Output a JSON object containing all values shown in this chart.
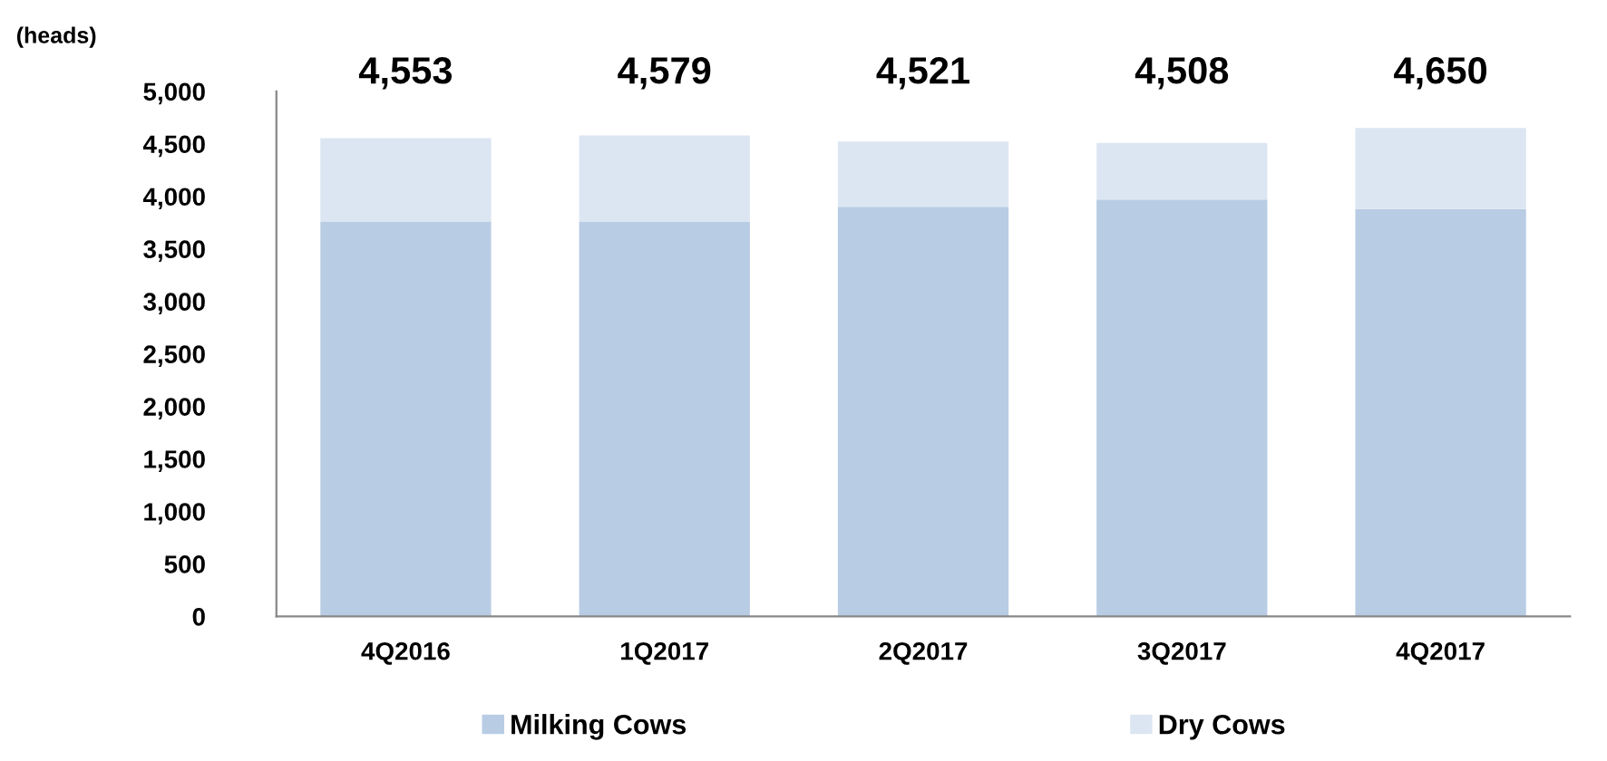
{
  "chart_data": {
    "type": "bar",
    "stacked": true,
    "ylabel": "(heads)",
    "categories": [
      "4Q2016",
      "1Q2017",
      "2Q2017",
      "3Q2017",
      "4Q2017"
    ],
    "series": [
      {
        "name": "Milking Cows",
        "color": "#b8cce4",
        "values": [
          3760,
          3760,
          3900,
          3970,
          3880
        ]
      },
      {
        "name": "Dry Cows",
        "color": "#dce6f2",
        "values": [
          793,
          819,
          621,
          538,
          770
        ]
      }
    ],
    "totals": [
      "4,553",
      "4,579",
      "4,521",
      "4,508",
      "4,650"
    ],
    "ylim": [
      0,
      5000
    ],
    "yticks": [
      {
        "value": 0,
        "label": "0"
      },
      {
        "value": 500,
        "label": "500"
      },
      {
        "value": 1000,
        "label": "1,000"
      },
      {
        "value": 1500,
        "label": "1,500"
      },
      {
        "value": 2000,
        "label": "2,000"
      },
      {
        "value": 2500,
        "label": "2,500"
      },
      {
        "value": 3000,
        "label": "3,000"
      },
      {
        "value": 3500,
        "label": "3,500"
      },
      {
        "value": 4000,
        "label": "4,000"
      },
      {
        "value": 4500,
        "label": "4,500"
      },
      {
        "value": 5000,
        "label": "5,000"
      }
    ],
    "grid": false,
    "legend": "bottom"
  }
}
